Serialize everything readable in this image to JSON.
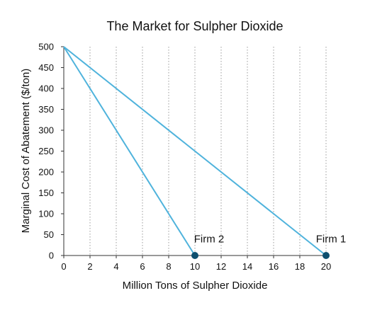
{
  "chart_data": {
    "type": "line",
    "title": "The Market for Sulpher Dioxide",
    "xlabel": "Million Tons of Sulpher Dioxide",
    "ylabel": "Marginal Cost of Abatement ($/ton)",
    "xlim": [
      0,
      20
    ],
    "ylim": [
      0,
      500
    ],
    "x_ticks": [
      "0",
      "2",
      "4",
      "6",
      "8",
      "10",
      "12",
      "14",
      "16",
      "18",
      "20"
    ],
    "y_ticks": [
      "0",
      "50",
      "100",
      "150",
      "200",
      "250",
      "300",
      "350",
      "400",
      "450",
      "500"
    ],
    "grid": {
      "vertical": true,
      "horizontal": false,
      "vertical_style": "dotted"
    },
    "series": [
      {
        "name": "Firm 1",
        "color": "#4fb3dc",
        "points": [
          {
            "x": 0,
            "y": 500
          },
          {
            "x": 20,
            "y": 0
          }
        ]
      },
      {
        "name": "Firm 2",
        "color": "#4fb3dc",
        "points": [
          {
            "x": 0,
            "y": 500
          },
          {
            "x": 10,
            "y": 0
          }
        ]
      }
    ],
    "markers": [
      {
        "x": 10,
        "y": 0,
        "color": "#0d4f6f"
      },
      {
        "x": 20,
        "y": 0,
        "color": "#0d4f6f"
      }
    ],
    "annotations": [
      {
        "text": "Firm 2",
        "x": 10,
        "y": 40
      },
      {
        "text": "Firm 1",
        "x": 20,
        "y": 40
      }
    ],
    "colors": {
      "line": "#4fb3dc",
      "marker": "#0d4f6f",
      "axis": "#333333",
      "grid": "#9a9a9a"
    }
  }
}
